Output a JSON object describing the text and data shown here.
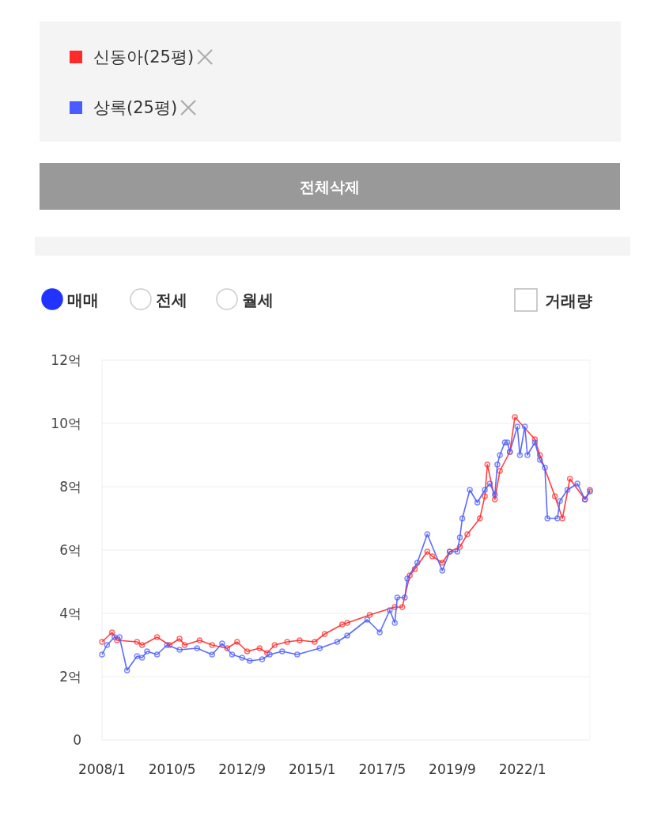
{
  "chart_data": {
    "type": "line",
    "legend": "top",
    "grid": "y",
    "marker": "circle",
    "line_style": "solid",
    "xlim": [
      "2008-01",
      "2024-04"
    ],
    "xticks": [
      {
        "value": "2008-01",
        "label": "2008/1"
      },
      {
        "value": "2010-05",
        "label": "2010/5"
      },
      {
        "value": "2012-09",
        "label": "2012/9"
      },
      {
        "value": "2015-01",
        "label": "2015/1"
      },
      {
        "value": "2017-05",
        "label": "2017/5"
      },
      {
        "value": "2019-09",
        "label": "2019/9"
      },
      {
        "value": "2022-01",
        "label": "2022/1"
      }
    ],
    "ylim": [
      0,
      12
    ],
    "yticks": [
      0,
      {
        "value": 2,
        "label": "2억"
      },
      {
        "value": 4,
        "label": "4억"
      },
      {
        "value": 6,
        "label": "6억"
      },
      {
        "value": 8,
        "label": "8억"
      },
      {
        "value": 10,
        "label": "10억"
      },
      {
        "value": 12,
        "label": "12억"
      }
    ],
    "annotations": [
      "전체삭제",
      "매매",
      "전세",
      "월세",
      "거래량"
    ],
    "series": [
      {
        "name": "신동아(25평)",
        "color": "#ff2a2a",
        "x": [
          "2008-01",
          "2008-05",
          "2008-07",
          "2009-03",
          "2009-05",
          "2009-11",
          "2010-04",
          "2010-08",
          "2010-10",
          "2011-04",
          "2011-09",
          "2012-03",
          "2012-07",
          "2012-11",
          "2013-04",
          "2013-07",
          "2013-10",
          "2014-03",
          "2014-08",
          "2015-02",
          "2015-06",
          "2016-01",
          "2016-03",
          "2016-12",
          "2017-10",
          "2018-01",
          "2018-04",
          "2018-06",
          "2018-11",
          "2019-01",
          "2019-05",
          "2019-08",
          "2019-12",
          "2020-03",
          "2020-08",
          "2020-10",
          "2020-11",
          "2021-02",
          "2021-04",
          "2021-08",
          "2021-10",
          "2022-06",
          "2022-08",
          "2023-02",
          "2023-05",
          "2023-08",
          "2024-02",
          "2024-04"
        ],
        "values": [
          3.1,
          3.4,
          3.15,
          3.1,
          3.0,
          3.25,
          3.0,
          3.2,
          3.0,
          3.15,
          3.0,
          2.9,
          3.1,
          2.8,
          2.9,
          2.75,
          3.0,
          3.1,
          3.15,
          3.1,
          3.35,
          3.65,
          3.7,
          3.95,
          4.2,
          4.2,
          5.2,
          5.4,
          5.95,
          5.8,
          5.6,
          5.95,
          6.1,
          6.5,
          7.0,
          7.7,
          8.7,
          7.6,
          8.5,
          9.1,
          10.2,
          9.5,
          9.0,
          7.7,
          7.0,
          8.25,
          7.6,
          7.9
        ]
      },
      {
        "name": "상록(25평)",
        "color": "#4a5cff",
        "x": [
          "2008-01",
          "2008-03",
          "2008-06",
          "2008-08",
          "2008-11",
          "2009-03",
          "2009-05",
          "2009-07",
          "2009-11",
          "2010-03",
          "2010-08",
          "2011-03",
          "2011-09",
          "2012-01",
          "2012-05",
          "2012-09",
          "2012-12",
          "2013-05",
          "2013-08",
          "2014-01",
          "2014-07",
          "2015-04",
          "2015-11",
          "2016-03",
          "2016-11",
          "2017-04",
          "2017-08",
          "2017-10",
          "2017-11",
          "2018-02",
          "2018-03",
          "2018-07",
          "2018-11",
          "2019-05",
          "2019-08",
          "2019-11",
          "2019-12",
          "2020-01",
          "2020-04",
          "2020-07",
          "2020-10",
          "2020-12",
          "2021-02",
          "2021-03",
          "2021-04",
          "2021-06",
          "2021-07",
          "2021-08",
          "2021-11",
          "2021-12",
          "2022-02",
          "2022-03",
          "2022-06",
          "2022-08",
          "2022-10",
          "2022-11",
          "2023-03",
          "2023-04",
          "2023-07",
          "2023-11",
          "2024-02",
          "2024-04"
        ],
        "values": [
          2.7,
          3.0,
          3.25,
          3.25,
          2.2,
          2.65,
          2.6,
          2.8,
          2.7,
          3.0,
          2.85,
          2.9,
          2.7,
          3.05,
          2.7,
          2.6,
          2.5,
          2.55,
          2.7,
          2.8,
          2.7,
          2.9,
          3.1,
          3.3,
          3.8,
          3.4,
          4.1,
          3.7,
          4.5,
          4.5,
          5.1,
          5.6,
          6.5,
          5.35,
          5.95,
          5.95,
          6.4,
          7.0,
          7.9,
          7.5,
          7.9,
          8.1,
          7.75,
          8.7,
          9.0,
          9.4,
          9.4,
          9.1,
          9.9,
          9.0,
          9.9,
          9.0,
          9.4,
          8.85,
          8.6,
          7.0,
          7.0,
          7.55,
          7.9,
          8.1,
          7.6,
          7.85
        ]
      }
    ]
  }
}
